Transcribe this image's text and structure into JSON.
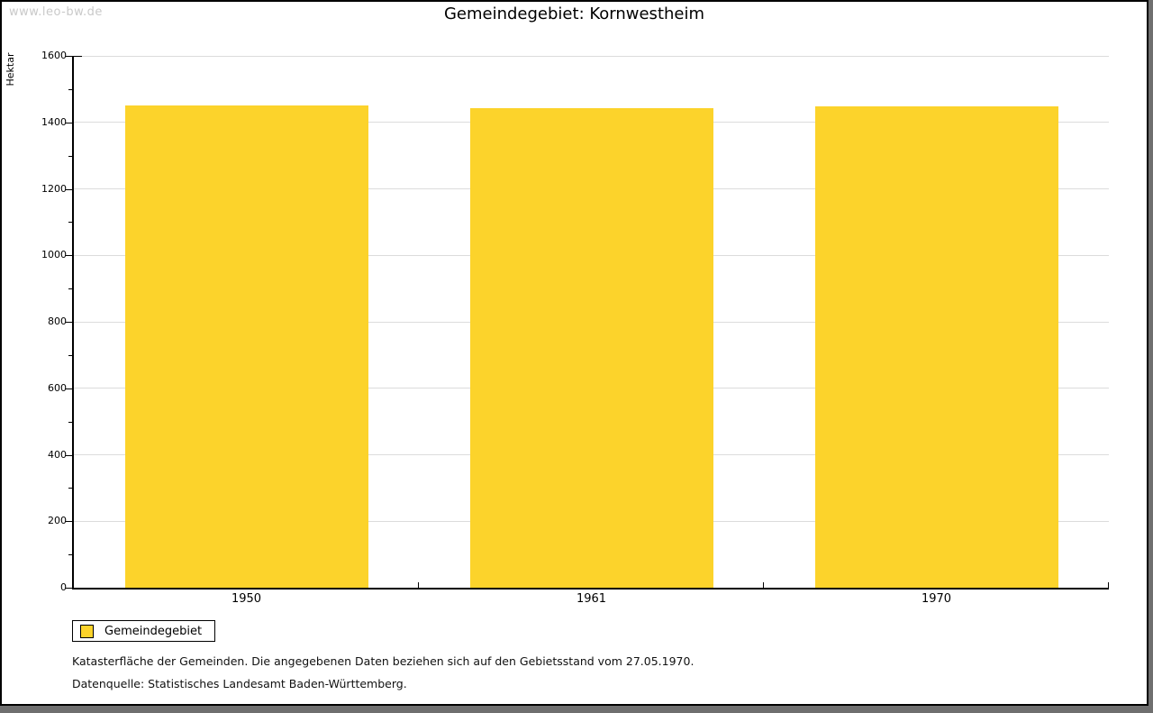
{
  "watermark": "www.leo-bw.de",
  "header": {
    "title": "Gemeindegebiet: Kornwestheim"
  },
  "chart_data": {
    "type": "bar",
    "title": "Gemeindegebiet: Kornwestheim",
    "categories": [
      "1950",
      "1961",
      "1970"
    ],
    "series": [
      {
        "name": "Gemeindegebiet",
        "values": [
          1451,
          1444,
          1447
        ],
        "color": "#FCD32B"
      }
    ],
    "xlabel": "",
    "ylabel": "Hektar",
    "ylim": [
      0,
      1600
    ],
    "y_major_step": 200,
    "y_minor_step": 100,
    "grid": "horizontal-major-on",
    "legend_position": "bottom-left"
  },
  "legend": {
    "items": [
      {
        "label": "Gemeindegebiet",
        "color": "#FCD32B"
      }
    ]
  },
  "footer": {
    "line1": "Katasterfläche der Gemeinden. Die angegebenen Daten beziehen sich auf den Gebietsstand vom 27.05.1970.",
    "line2": "Datenquelle: Statistisches Landesamt Baden-Württemberg."
  },
  "colors": {
    "bar": "#FCD32B",
    "grid": "#DCDCDC",
    "axis": "#000000",
    "watermark": "#C9C9C9",
    "frame_shadow": "#6F6F6F",
    "background": "#FFFFFF"
  }
}
